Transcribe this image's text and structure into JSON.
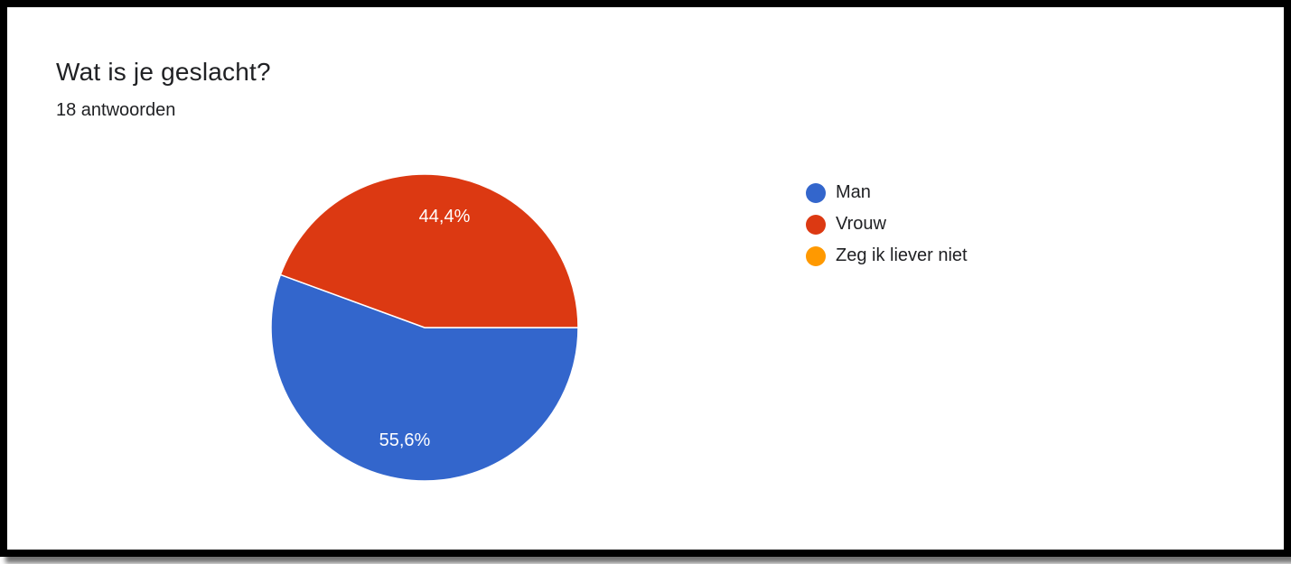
{
  "header": {
    "title": "Wat is je geslacht?",
    "subtitle": "18 antwoorden"
  },
  "chart_data": {
    "type": "pie",
    "title": "Wat is je geslacht?",
    "subtitle": "18 antwoorden",
    "total_responses": 18,
    "legend_position": "right",
    "slices": [
      {
        "name": "Man",
        "percent": 55.6,
        "count": 10,
        "label": "55,6%",
        "color": "#3366cc"
      },
      {
        "name": "Vrouw",
        "percent": 44.4,
        "count": 8,
        "label": "44,4%",
        "color": "#dc3912"
      },
      {
        "name": "Zeg ik liever niet",
        "percent": 0,
        "count": 0,
        "label": "",
        "color": "#ff9900"
      }
    ]
  },
  "legend": {
    "items": [
      {
        "label": "Man",
        "color": "#3366cc",
        "icon": "filled-circle"
      },
      {
        "label": "Vrouw",
        "color": "#dc3912",
        "icon": "filled-circle"
      },
      {
        "label": "Zeg ik liever niet",
        "color": "#ff9900",
        "icon": "filled-circle"
      }
    ]
  }
}
